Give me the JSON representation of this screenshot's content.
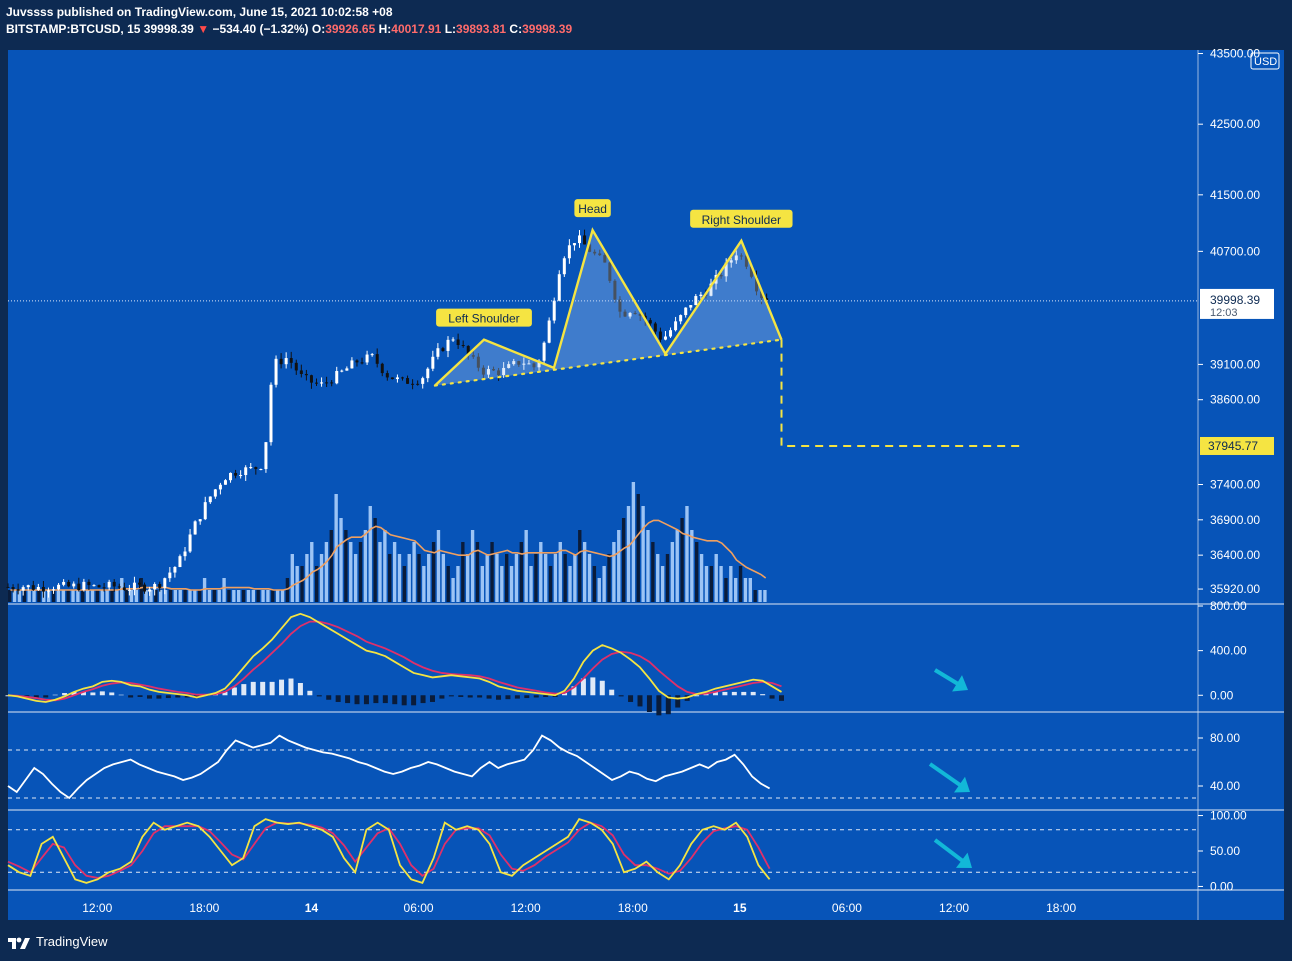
{
  "header": {
    "published_line": "Juvssss published on TradingView.com, June 15, 2021 10:02:58 +08",
    "symbol": "BITSTAMP:BTCUSD, 15",
    "last": "39998.39",
    "change": "−534.40 (−1.32%)",
    "o_label": "O:",
    "o": "39926.65",
    "h_label": "H:",
    "h": "40017.91",
    "l_label": "L:",
    "l": "39893.81",
    "c_label": "C:",
    "c": "39998.39"
  },
  "footer": {
    "brand": "TradingView"
  },
  "colors": {
    "background": "#0754b8",
    "frame": "#0d2a52",
    "pattern": "#f5e442",
    "up_candle": "#ffffff",
    "down_candle": "#111111",
    "ma": "#f0a060",
    "macd": "#f5e442",
    "signal": "#e0306a",
    "arrow": "#12b8d8"
  },
  "chart_data": [
    {
      "type": "candlestick",
      "currency": "USD",
      "x_ticks": [
        "12:00",
        "18:00",
        "14",
        "06:00",
        "12:00",
        "18:00",
        "15",
        "06:00",
        "12:00",
        "18:00"
      ],
      "y_ticks": [
        "43500.00",
        "42500.00",
        "41500.00",
        "40700.00",
        "39100.00",
        "38600.00",
        "37400.00",
        "36900.00",
        "36400.00",
        "35920.00"
      ],
      "price_label": "39998.39",
      "countdown": "12:03",
      "target_label": "37945.77",
      "ylim": [
        35850,
        43550
      ],
      "close_path": [
        {
          "t": 0,
          "p": 35950
        },
        {
          "t": 10,
          "p": 35960
        },
        {
          "t": 20,
          "p": 35940
        },
        {
          "t": 30,
          "p": 35960
        },
        {
          "t": 40,
          "p": 35950
        },
        {
          "t": 50,
          "p": 35970
        },
        {
          "t": 60,
          "p": 35950
        },
        {
          "t": 70,
          "p": 35960
        },
        {
          "t": 80,
          "p": 35940
        },
        {
          "t": 90,
          "p": 35950
        },
        {
          "t": 100,
          "p": 35960
        },
        {
          "t": 115,
          "p": 36300
        },
        {
          "t": 125,
          "p": 36800
        },
        {
          "t": 135,
          "p": 37200
        },
        {
          "t": 145,
          "p": 37500
        },
        {
          "t": 155,
          "p": 37600
        },
        {
          "t": 165,
          "p": 37620
        },
        {
          "t": 172,
          "p": 37700
        },
        {
          "t": 178,
          "p": 39100
        },
        {
          "t": 188,
          "p": 39200
        },
        {
          "t": 198,
          "p": 38900
        },
        {
          "t": 210,
          "p": 38800
        },
        {
          "t": 222,
          "p": 38950
        },
        {
          "t": 235,
          "p": 39150
        },
        {
          "t": 245,
          "p": 39200
        },
        {
          "t": 255,
          "p": 38950
        },
        {
          "t": 265,
          "p": 38850
        },
        {
          "t": 278,
          "p": 38900
        },
        {
          "t": 290,
          "p": 39300
        },
        {
          "t": 300,
          "p": 39500
        },
        {
          "t": 310,
          "p": 39200
        },
        {
          "t": 320,
          "p": 39000
        },
        {
          "t": 332,
          "p": 39000
        },
        {
          "t": 345,
          "p": 39150
        },
        {
          "t": 355,
          "p": 39050
        },
        {
          "t": 362,
          "p": 39500
        },
        {
          "t": 372,
          "p": 40600
        },
        {
          "t": 382,
          "p": 40900
        },
        {
          "t": 392,
          "p": 40700
        },
        {
          "t": 402,
          "p": 40500
        },
        {
          "t": 412,
          "p": 39800
        },
        {
          "t": 420,
          "p": 39900
        },
        {
          "t": 430,
          "p": 39700
        },
        {
          "t": 440,
          "p": 39450
        },
        {
          "t": 450,
          "p": 39700
        },
        {
          "t": 460,
          "p": 40000
        },
        {
          "t": 470,
          "p": 40150
        },
        {
          "t": 480,
          "p": 40400
        },
        {
          "t": 490,
          "p": 40700
        },
        {
          "t": 498,
          "p": 40500
        },
        {
          "t": 505,
          "p": 40100
        },
        {
          "t": 511,
          "p": 39998
        }
      ],
      "volume": [
        1,
        1,
        1,
        1,
        1,
        1,
        1,
        1,
        1,
        1,
        1,
        1,
        1,
        1,
        1,
        1,
        1,
        1,
        1,
        1,
        1,
        1,
        1,
        2,
        1,
        1,
        1,
        2,
        1,
        1,
        1,
        1,
        1,
        1,
        1,
        1,
        1,
        1,
        1,
        1,
        2,
        1,
        1,
        1,
        2,
        1,
        1,
        1,
        1,
        1,
        1,
        1,
        1,
        1,
        1,
        1,
        1,
        2,
        4,
        3,
        3,
        4,
        5,
        3,
        4,
        5,
        6,
        9,
        7,
        6,
        5,
        4,
        5,
        6,
        8,
        7,
        5,
        6,
        4,
        5,
        4,
        3,
        4,
        5,
        4,
        3,
        4,
        5,
        6,
        4,
        3,
        2,
        3,
        5,
        4,
        6,
        5,
        3,
        4,
        5,
        4,
        3,
        4,
        3,
        4,
        5,
        6,
        3,
        4,
        5,
        4,
        3,
        4,
        5,
        4,
        3,
        4,
        6,
        5,
        4,
        3,
        2,
        3,
        4,
        5,
        6,
        7,
        8,
        10,
        9,
        8,
        6,
        5,
        4,
        3,
        4,
        5,
        6,
        7,
        8,
        6,
        5,
        4,
        3,
        3,
        4,
        3,
        2,
        3,
        2,
        3,
        2,
        2,
        1,
        1,
        1
      ],
      "ma_label": "Volume MA",
      "patterns": [
        {
          "label": "Left Shoulder"
        },
        {
          "label": "Head"
        },
        {
          "label": "Right Shoulder"
        }
      ],
      "hs_points": [
        {
          "t": 287,
          "p": 38800
        },
        {
          "t": 320,
          "p": 39450
        },
        {
          "t": 367,
          "p": 39050
        },
        {
          "t": 393,
          "p": 41000
        },
        {
          "t": 442,
          "p": 39250
        },
        {
          "t": 493,
          "p": 40850
        },
        {
          "t": 520,
          "p": 39450
        }
      ],
      "neckline": [
        {
          "t": 287,
          "p": 38800
        },
        {
          "t": 520,
          "p": 39450
        }
      ],
      "target_drop": [
        {
          "t": 520,
          "p": 39450
        },
        {
          "t": 520,
          "p": 37945
        },
        {
          "t": 680,
          "p": 37945
        }
      ]
    },
    {
      "type": "line",
      "panel": "macd",
      "y_ticks": [
        "800.00",
        "400.00",
        "0.00"
      ],
      "ylim": [
        -150,
        800
      ],
      "macd": [
        0,
        -10,
        -30,
        -50,
        -60,
        -40,
        -10,
        30,
        60,
        80,
        120,
        130,
        120,
        90,
        80,
        50,
        30,
        20,
        10,
        0,
        -20,
        0,
        20,
        60,
        150,
        250,
        350,
        420,
        500,
        600,
        700,
        730,
        700,
        650,
        600,
        550,
        500,
        450,
        400,
        380,
        350,
        300,
        250,
        200,
        180,
        160,
        170,
        180,
        170,
        160,
        150,
        120,
        80,
        60,
        40,
        30,
        20,
        10,
        0,
        40,
        150,
        300,
        400,
        450,
        420,
        380,
        320,
        250,
        150,
        40,
        -20,
        -30,
        -20,
        10,
        30,
        60,
        80,
        100,
        120,
        140,
        130,
        80,
        30
      ],
      "signal": [
        0,
        -5,
        -15,
        -25,
        -40,
        -45,
        -30,
        0,
        30,
        55,
        85,
        105,
        115,
        110,
        95,
        80,
        60,
        45,
        30,
        20,
        5,
        5,
        10,
        30,
        80,
        150,
        230,
        300,
        380,
        460,
        550,
        620,
        660,
        660,
        640,
        610,
        570,
        530,
        480,
        450,
        420,
        380,
        340,
        290,
        250,
        220,
        200,
        190,
        185,
        180,
        170,
        150,
        120,
        95,
        70,
        55,
        40,
        25,
        15,
        20,
        70,
        150,
        240,
        320,
        370,
        390,
        380,
        350,
        300,
        220,
        150,
        80,
        30,
        10,
        15,
        30,
        50,
        70,
        90,
        110,
        120,
        110,
        80
      ],
      "hist": [
        0,
        -5,
        -15,
        -25,
        -20,
        5,
        20,
        30,
        30,
        25,
        35,
        25,
        5,
        -20,
        -15,
        -30,
        -30,
        -25,
        -20,
        -20,
        -25,
        -5,
        10,
        30,
        70,
        100,
        120,
        120,
        120,
        140,
        150,
        110,
        40,
        -10,
        -40,
        -60,
        -70,
        -80,
        -80,
        -70,
        -70,
        -80,
        -90,
        -90,
        -70,
        -60,
        -30,
        -10,
        -15,
        -20,
        -20,
        -30,
        -40,
        -35,
        -30,
        -25,
        -20,
        -15,
        -15,
        20,
        80,
        150,
        160,
        130,
        50,
        -10,
        -60,
        -100,
        -150,
        -180,
        -170,
        -110,
        -50,
        0,
        15,
        30,
        30,
        30,
        30,
        30,
        10,
        -30,
        -50
      ]
    },
    {
      "type": "line",
      "panel": "rsi",
      "y_ticks": [
        "80.00",
        "40.00"
      ],
      "ylim": [
        20,
        100
      ],
      "levels": [
        70,
        30
      ],
      "values": [
        40,
        35,
        45,
        55,
        50,
        42,
        35,
        30,
        38,
        45,
        50,
        55,
        58,
        60,
        62,
        58,
        55,
        52,
        50,
        48,
        45,
        47,
        50,
        55,
        60,
        70,
        78,
        75,
        72,
        74,
        76,
        82,
        78,
        75,
        72,
        70,
        68,
        67,
        65,
        63,
        60,
        58,
        55,
        52,
        50,
        52,
        55,
        57,
        60,
        58,
        55,
        52,
        50,
        48,
        55,
        60,
        55,
        58,
        60,
        62,
        70,
        82,
        78,
        72,
        68,
        65,
        60,
        55,
        50,
        45,
        48,
        52,
        50,
        46,
        44,
        48,
        50,
        52,
        55,
        58,
        55,
        60,
        62,
        66,
        58,
        48,
        42,
        38
      ]
    },
    {
      "type": "line",
      "panel": "stoch",
      "y_ticks": [
        "100.00",
        "50.00",
        "0.00"
      ],
      "ylim": [
        -5,
        105
      ],
      "levels": [
        80,
        20
      ],
      "k": [
        30,
        20,
        15,
        60,
        70,
        40,
        10,
        5,
        10,
        20,
        25,
        35,
        70,
        90,
        80,
        85,
        90,
        85,
        70,
        50,
        30,
        40,
        85,
        95,
        90,
        88,
        90,
        85,
        80,
        70,
        40,
        20,
        80,
        90,
        80,
        30,
        10,
        5,
        40,
        90,
        80,
        85,
        80,
        60,
        20,
        15,
        30,
        40,
        50,
        60,
        70,
        95,
        90,
        80,
        60,
        20,
        25,
        35,
        20,
        10,
        30,
        60,
        80,
        85,
        80,
        90,
        70,
        30,
        10
      ],
      "d": [
        35,
        28,
        20,
        40,
        60,
        55,
        30,
        15,
        12,
        15,
        22,
        30,
        50,
        75,
        85,
        85,
        85,
        85,
        78,
        62,
        45,
        38,
        60,
        82,
        90,
        89,
        89,
        87,
        83,
        75,
        58,
        35,
        55,
        75,
        82,
        60,
        30,
        15,
        25,
        60,
        80,
        82,
        82,
        72,
        45,
        25,
        22,
        30,
        42,
        52,
        62,
        80,
        90,
        85,
        72,
        45,
        30,
        30,
        25,
        18,
        22,
        40,
        62,
        78,
        82,
        85,
        80,
        55,
        25
      ]
    }
  ]
}
